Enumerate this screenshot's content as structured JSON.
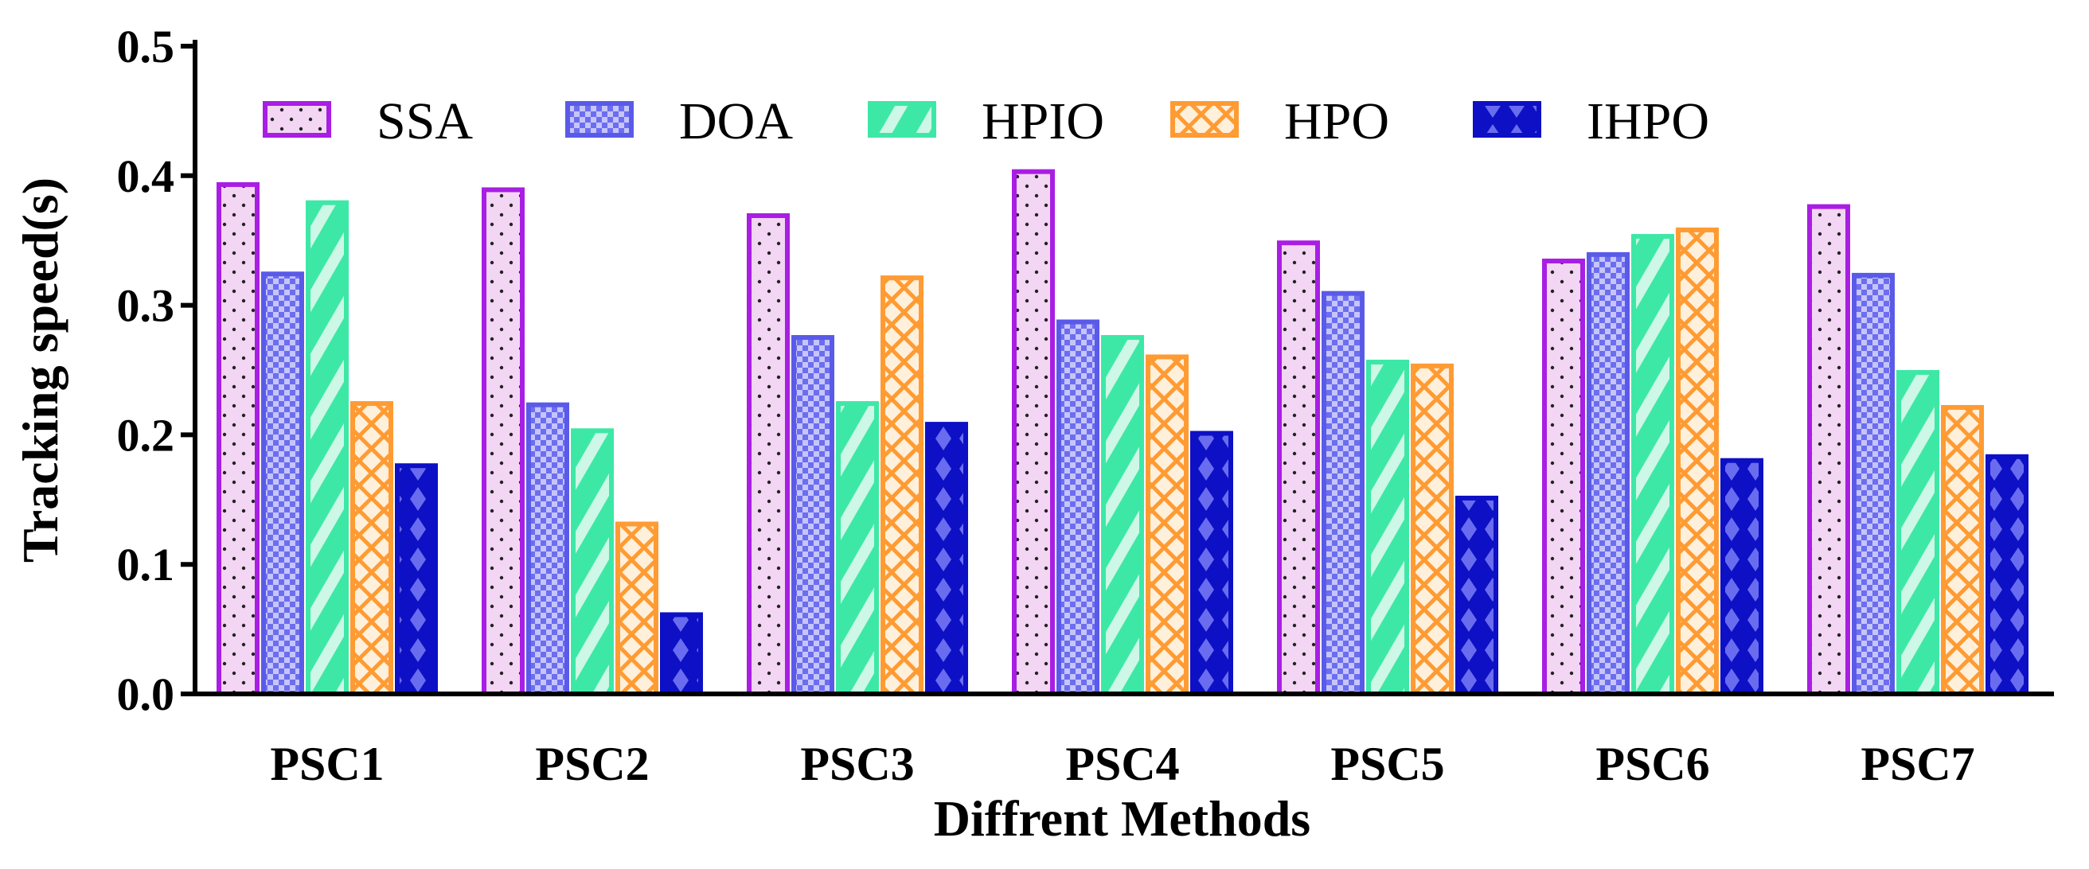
{
  "chart_data": {
    "type": "bar",
    "title": "",
    "xlabel": "Diffrent Methods",
    "ylabel": "Tracking speed(s)",
    "ylim": [
      0,
      0.5
    ],
    "yticks": [
      "0.0",
      "0.1",
      "0.2",
      "0.3",
      "0.4",
      "0.5"
    ],
    "grid": false,
    "legend_position": "top",
    "categories": [
      "PSC1",
      "PSC2",
      "PSC3",
      "PSC4",
      "PSC5",
      "PSC6",
      "PSC7"
    ],
    "series": [
      {
        "name": "SSA",
        "values": [
          0.395,
          0.391,
          0.371,
          0.405,
          0.35,
          0.336,
          0.378
        ],
        "fill": "#f3d6f3",
        "stroke": "#a91ee3",
        "pattern": "dots"
      },
      {
        "name": "DOA",
        "values": [
          0.326,
          0.225,
          0.277,
          0.289,
          0.311,
          0.341,
          0.325
        ],
        "fill": "#8f8ff2",
        "stroke": "#5a5ae8",
        "pattern": "checker"
      },
      {
        "name": "HPIO",
        "values": [
          0.381,
          0.205,
          0.226,
          0.277,
          0.258,
          0.355,
          0.25
        ],
        "fill": "#3de8a6",
        "stroke": "#3de8a6",
        "pattern": "diagonal"
      },
      {
        "name": "HPO",
        "values": [
          0.226,
          0.133,
          0.323,
          0.262,
          0.255,
          0.36,
          0.223
        ],
        "fill": "#ffe6c9",
        "stroke": "#ff9b33",
        "pattern": "crosshatch"
      },
      {
        "name": "IHPO",
        "values": [
          0.178,
          0.063,
          0.21,
          0.203,
          0.153,
          0.182,
          0.185
        ],
        "fill": "#0d10c4",
        "stroke": "#0d10c4",
        "pattern": "diamond"
      }
    ]
  }
}
